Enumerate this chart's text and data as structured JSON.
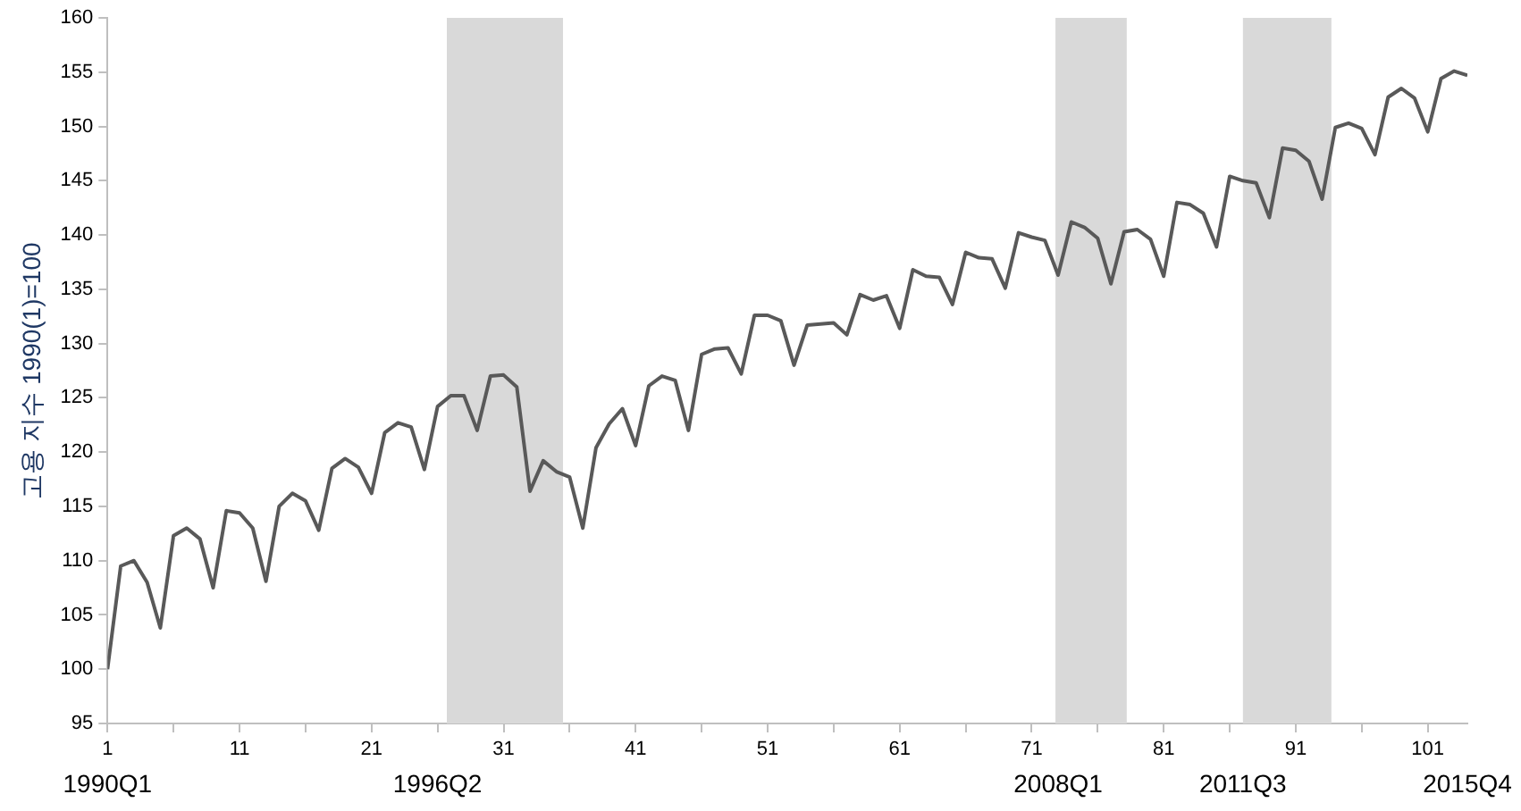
{
  "chart_data": {
    "type": "line",
    "ylabel": "고용 지수 1990(1)=100",
    "x": [
      1,
      2,
      3,
      4,
      5,
      6,
      7,
      8,
      9,
      10,
      11,
      12,
      13,
      14,
      15,
      16,
      17,
      18,
      19,
      20,
      21,
      22,
      23,
      24,
      25,
      26,
      27,
      28,
      29,
      30,
      31,
      32,
      33,
      34,
      35,
      36,
      37,
      38,
      39,
      40,
      41,
      42,
      43,
      44,
      45,
      46,
      47,
      48,
      49,
      50,
      51,
      52,
      53,
      54,
      55,
      56,
      57,
      58,
      59,
      60,
      61,
      62,
      63,
      64,
      65,
      66,
      67,
      68,
      69,
      70,
      71,
      72,
      73,
      74,
      75,
      76,
      77,
      78,
      79,
      80,
      81,
      82,
      83,
      84,
      85,
      86,
      87,
      88,
      89,
      90,
      91,
      92,
      93,
      94,
      95,
      96,
      97,
      98,
      99,
      100,
      101,
      102,
      103,
      104
    ],
    "series": [
      {
        "color": "#595959",
        "values": [
          100,
          109.5,
          110,
          108,
          103.8,
          112.3,
          113,
          112,
          107.5,
          114.6,
          114.4,
          113,
          108.1,
          115,
          116.2,
          115.5,
          112.8,
          118.5,
          119.4,
          118.6,
          116.2,
          121.8,
          122.7,
          122.3,
          118.4,
          124.2,
          125.2,
          125.2,
          122,
          127,
          127.1,
          126,
          116.4,
          119.2,
          118.2,
          117.7,
          113,
          120.4,
          122.6,
          124,
          120.6,
          126.1,
          127,
          126.6,
          122,
          129,
          129.5,
          129.6,
          127.2,
          132.6,
          132.6,
          132.1,
          128,
          131.7,
          131.8,
          131.9,
          130.8,
          134.5,
          134,
          134.4,
          131.4,
          136.8,
          136.2,
          136.1,
          133.6,
          138.4,
          137.9,
          137.8,
          135.1,
          140.2,
          139.8,
          139.5,
          136.3,
          141.2,
          140.7,
          139.7,
          135.5,
          140.3,
          140.5,
          139.6,
          136.2,
          143,
          142.8,
          142,
          138.9,
          145.4,
          145,
          144.8,
          141.6,
          148,
          147.8,
          146.8,
          143.3,
          149.9,
          150.3,
          149.8,
          147.4,
          152.7,
          153.5,
          152.6,
          149.5,
          154.4,
          155.1,
          154.7
        ]
      }
    ],
    "xlim": [
      1,
      104
    ],
    "xticks": [
      1,
      {
        "value": 6,
        "label": null
      },
      11,
      {
        "value": 16,
        "label": null
      },
      21,
      {
        "value": 26,
        "label": null
      },
      31,
      {
        "value": 36,
        "label": null
      },
      41,
      {
        "value": 46,
        "label": null
      },
      51,
      {
        "value": 56,
        "label": null
      },
      61,
      {
        "value": 66,
        "label": null
      },
      71,
      {
        "value": 76,
        "label": null
      },
      81,
      {
        "value": 86,
        "label": null
      },
      91,
      {
        "value": 96,
        "label": null
      },
      101
    ],
    "ylim": [
      95,
      160
    ],
    "yticks": [
      95,
      100,
      105,
      110,
      115,
      120,
      125,
      130,
      135,
      140,
      145,
      150,
      155,
      160
    ],
    "bands": [
      {
        "axis": "x",
        "from": 26.7,
        "to": 35.5,
        "color": "#d9d9d9"
      },
      {
        "axis": "x",
        "from": 72.8,
        "to": 78.2,
        "color": "#d9d9d9"
      },
      {
        "axis": "x",
        "from": 87,
        "to": 93.7,
        "color": "#d9d9d9"
      }
    ],
    "x2lim": [
      "1990-01",
      "2015-10"
    ],
    "x2ticks": [
      {
        "value": "1990-01",
        "label": "1990Q1"
      },
      {
        "value": "1996-04",
        "label": "1996Q2"
      },
      {
        "value": "2008-01",
        "label": "2008Q1"
      },
      {
        "value": "2011-07",
        "label": "2011Q3"
      },
      {
        "value": "2015-10",
        "label": "2015Q4"
      }
    ],
    "grid": false,
    "legend": false,
    "marker": "none",
    "line_style": "solid"
  }
}
